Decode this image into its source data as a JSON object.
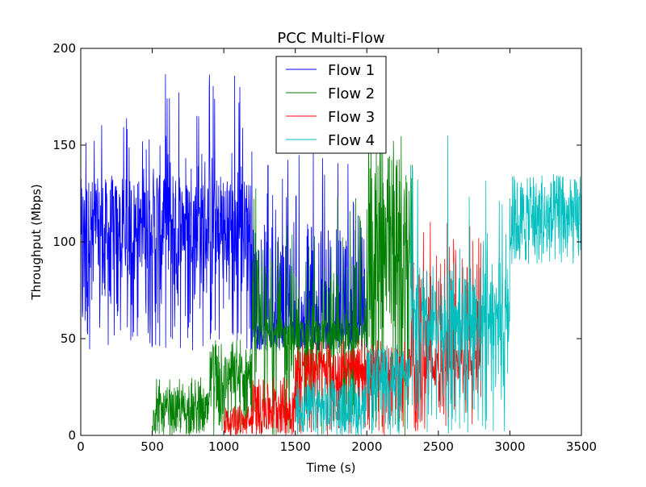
{
  "chart_data": {
    "type": "line",
    "title": "PCC Multi-Flow",
    "xlabel": "Time (s)",
    "ylabel": "Throughput (Mbps)",
    "xlim": [
      0,
      3500
    ],
    "ylim": [
      0,
      200
    ],
    "xticks": [
      0,
      500,
      1000,
      1500,
      2000,
      2500,
      3000,
      3500
    ],
    "yticks": [
      0,
      50,
      100,
      150,
      200
    ],
    "grid": false,
    "legend_position": "top-center",
    "series": [
      {
        "name": "Flow 1",
        "color": "#0000ff",
        "start": 0,
        "end": 2000,
        "bands": [
          {
            "from": 0,
            "to": 500,
            "low": 44,
            "high": 133,
            "peak": 172,
            "dense_low": 88,
            "dense_high": 133
          },
          {
            "from": 500,
            "to": 1200,
            "low": 44,
            "high": 150,
            "peak": 188,
            "dense_low": 88,
            "dense_high": 133
          },
          {
            "from": 1200,
            "to": 2000,
            "low": 44,
            "high": 110,
            "peak": 150,
            "dense_low": 44,
            "dense_high": 60
          }
        ]
      },
      {
        "name": "Flow 2",
        "color": "#008000",
        "start": 500,
        "end": 2330,
        "bands": [
          {
            "from": 500,
            "to": 900,
            "low": 0,
            "high": 25,
            "peak": 30,
            "dense_low": 0,
            "dense_high": 22
          },
          {
            "from": 900,
            "to": 1200,
            "low": 0,
            "high": 44,
            "peak": 50,
            "dense_low": 20,
            "dense_high": 44
          },
          {
            "from": 1200,
            "to": 2000,
            "low": 0,
            "high": 90,
            "peak": 130,
            "dense_low": 44,
            "dense_high": 60
          },
          {
            "from": 2000,
            "to": 2330,
            "low": 0,
            "high": 150,
            "peak": 155,
            "dense_low": 50,
            "dense_high": 145
          }
        ]
      },
      {
        "name": "Flow 3",
        "color": "#ff0000",
        "start": 1000,
        "end": 2800,
        "bands": [
          {
            "from": 1000,
            "to": 1200,
            "low": 0,
            "high": 14,
            "peak": 16,
            "dense_low": 0,
            "dense_high": 13
          },
          {
            "from": 1200,
            "to": 1500,
            "low": 0,
            "high": 28,
            "peak": 30,
            "dense_low": 0,
            "dense_high": 27
          },
          {
            "from": 1500,
            "to": 2300,
            "low": 0,
            "high": 45,
            "peak": 50,
            "dense_low": 28,
            "dense_high": 45
          },
          {
            "from": 2300,
            "to": 2800,
            "low": 0,
            "high": 90,
            "peak": 115,
            "dense_low": 28,
            "dense_high": 45
          }
        ]
      },
      {
        "name": "Flow 4",
        "color": "#00bfbf",
        "start": 1500,
        "end": 3500,
        "bands": [
          {
            "from": 1500,
            "to": 2000,
            "low": 0,
            "high": 28,
            "peak": 30,
            "dense_low": 0,
            "dense_high": 27
          },
          {
            "from": 2000,
            "to": 2300,
            "low": 0,
            "high": 45,
            "peak": 50,
            "dense_low": 20,
            "dense_high": 45
          },
          {
            "from": 2300,
            "to": 3000,
            "low": 0,
            "high": 90,
            "peak": 157,
            "dense_low": 45,
            "dense_high": 88
          },
          {
            "from": 3000,
            "to": 3500,
            "low": 88,
            "high": 133,
            "peak": 135,
            "dense_low": 88,
            "dense_high": 133
          }
        ]
      }
    ]
  }
}
